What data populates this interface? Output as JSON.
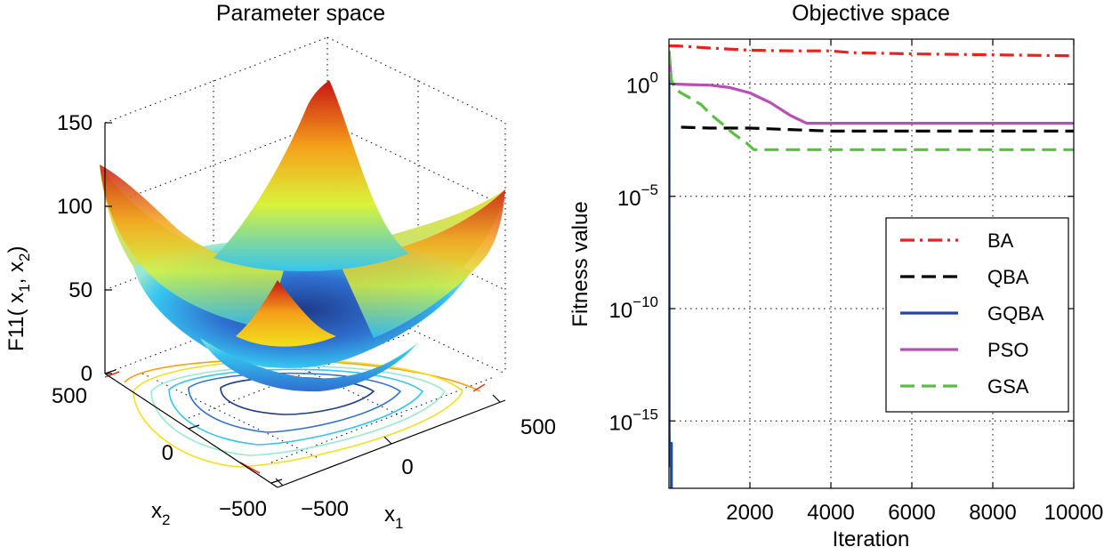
{
  "chart_data": [
    {
      "type": "surface",
      "title": "Parameter space",
      "zlabel_main": "F11( x",
      "zlabel_sub1": "1",
      "zlabel_sep": ", x",
      "zlabel_sub2": "2",
      "zlabel_end": ")",
      "xlabel_main": "x",
      "xlabel_sub": "1",
      "ylabel_main": "x",
      "ylabel_sub": "2",
      "zticks": [
        "0",
        "50",
        "100",
        "150"
      ],
      "x1ticks": [
        "−500",
        "0",
        "500"
      ],
      "x2ticks": [
        "−500",
        "0",
        "500"
      ],
      "x1lim": [
        -600,
        600
      ],
      "x2lim": [
        -600,
        600
      ],
      "zlim": [
        0,
        150
      ],
      "colormap": [
        "#1e3c8c",
        "#2f6fcf",
        "#35c4f0",
        "#9be8d0",
        "#d9f23a",
        "#f2e01e",
        "#f5a21a",
        "#e33a1e",
        "#b01010"
      ]
    },
    {
      "type": "line",
      "title": "Objective space",
      "xlabel": "Iteration",
      "ylabel": "Fitness value",
      "yscale": "log",
      "xlim": [
        0,
        10000
      ],
      "ylim": [
        1e-18,
        100
      ],
      "xticks": [
        "2000",
        "4000",
        "6000",
        "8000",
        "10000"
      ],
      "yticks": [
        {
          "base": "10",
          "exp": "0",
          "value": 1
        },
        {
          "base": "10",
          "exp": "−5",
          "value": 1e-05
        },
        {
          "base": "10",
          "exp": "−10",
          "value": 1e-10
        },
        {
          "base": "10",
          "exp": "−15",
          "value": 1e-15
        }
      ],
      "grid": true,
      "legend_position": "right",
      "series": [
        {
          "name": "BA",
          "color": "#e8221c",
          "dash": "dashdot",
          "x": [
            0,
            100,
            200,
            1000,
            2000,
            3000,
            4000,
            4500,
            6000,
            8000,
            10000
          ],
          "y": [
            50,
            50,
            50,
            40,
            32,
            30,
            30,
            25,
            22,
            20,
            18
          ]
        },
        {
          "name": "QBA",
          "color": "#000000",
          "dash": "dashed",
          "x": [
            300,
            1000,
            2000,
            4000,
            6000,
            8000,
            10000
          ],
          "y": [
            0.012,
            0.011,
            0.011,
            0.008,
            0.008,
            0.008,
            0.008
          ]
        },
        {
          "name": "GQBA",
          "color": "#2048a8",
          "dash": "solid",
          "x": [
            0,
            5,
            10,
            20,
            20,
            60,
            60,
            80
          ],
          "y": [
            30,
            1e-15,
            1e-17,
            1e-17,
            1e-16,
            1e-16,
            1e-18,
            1e-18
          ]
        },
        {
          "name": "PSO",
          "color": "#b84fb8",
          "dash": "solid",
          "x": [
            0,
            60,
            120,
            500,
            1000,
            1500,
            2000,
            2500,
            3000,
            3400,
            4000,
            6000,
            8000,
            10000
          ],
          "y": [
            30,
            1.2,
            1.0,
            0.95,
            0.9,
            0.7,
            0.4,
            0.15,
            0.04,
            0.018,
            0.018,
            0.018,
            0.018,
            0.018
          ]
        },
        {
          "name": "GSA",
          "color": "#5cbd46",
          "dash": "dashed",
          "x": [
            0,
            60,
            150,
            300,
            500,
            800,
            1000,
            1300,
            1600,
            1900,
            2100,
            3000,
            5000,
            8000,
            10000
          ],
          "y": [
            30,
            1.5,
            0.6,
            0.4,
            0.25,
            0.12,
            0.05,
            0.018,
            0.006,
            0.0025,
            0.0012,
            0.0012,
            0.0012,
            0.0012,
            0.0012
          ]
        }
      ]
    }
  ]
}
